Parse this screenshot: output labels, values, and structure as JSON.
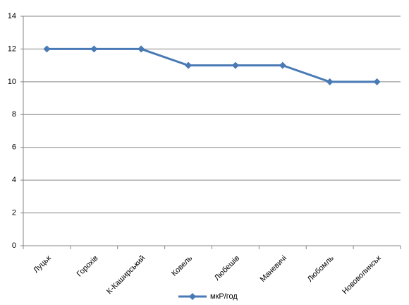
{
  "chart_data": {
    "type": "line",
    "categories": [
      "Луцьк",
      "Горохів",
      "К-Каширський",
      "Ковель",
      "Любешів",
      "Маневичі",
      "Любомль",
      "Нововолинськ"
    ],
    "series": [
      {
        "name": "мкР/год",
        "color": "#4a7ab5",
        "values": [
          12,
          12,
          12,
          11,
          11,
          11,
          10,
          10
        ]
      }
    ],
    "ylim": [
      0,
      14
    ],
    "yticks": [
      0,
      2,
      4,
      6,
      8,
      10,
      12,
      14
    ],
    "grid": true,
    "legend": "bottom"
  }
}
